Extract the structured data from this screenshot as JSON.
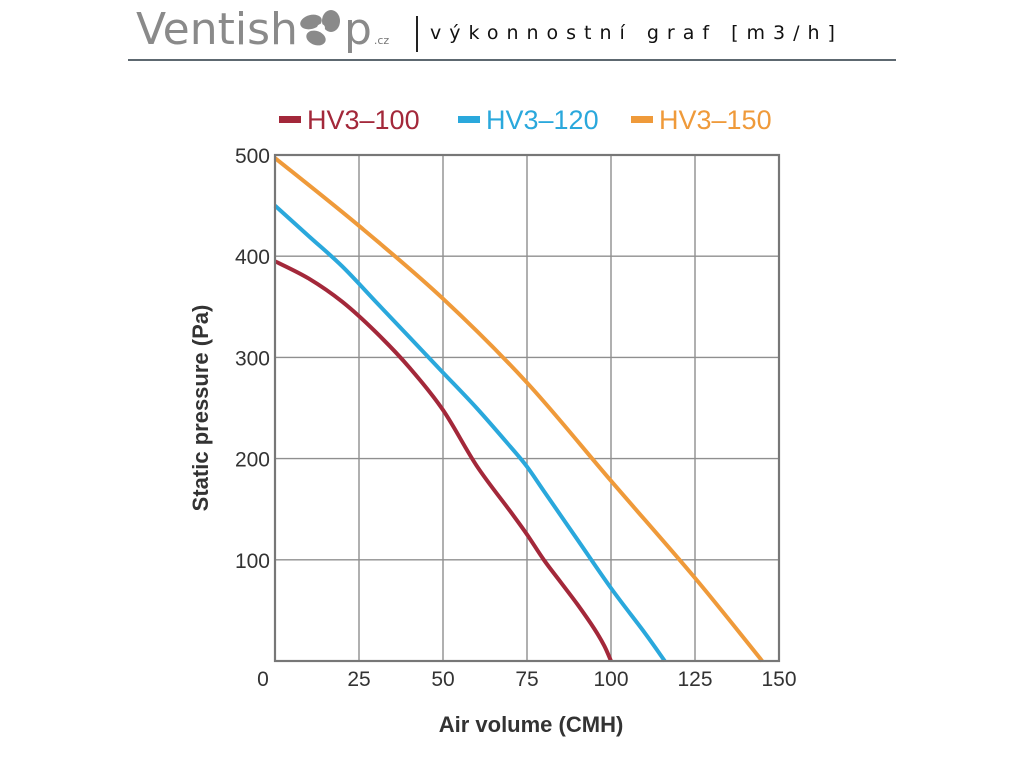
{
  "header": {
    "logo_text_left": "Ventish",
    "logo_text_right": "p",
    "logo_tld": ".cz",
    "subtitle": "výkonnostní graf [m3/h]"
  },
  "chart_data": {
    "type": "line",
    "title": "",
    "xlabel": "Air volume (CMH)",
    "ylabel": "Static pressure (Pa)",
    "xlim": [
      0,
      150
    ],
    "ylim": [
      0,
      500
    ],
    "xticks": [
      0,
      25,
      50,
      75,
      100,
      125,
      150
    ],
    "yticks": [
      100,
      200,
      300,
      400,
      500
    ],
    "xtick_labels": [
      "0",
      "25",
      "50",
      "75",
      "100",
      "125",
      "150"
    ],
    "ytick_labels": [
      "100",
      "200",
      "300",
      "400",
      "500"
    ],
    "grid": true,
    "legend_position": "top",
    "series": [
      {
        "name": "HV3-100",
        "color": "#a3283a",
        "x": [
          0,
          10,
          20,
          30,
          40,
          50,
          60,
          70,
          75,
          80,
          85,
          90,
          95,
          98,
          100
        ],
        "y": [
          395,
          378,
          355,
          325,
          290,
          248,
          193,
          148,
          125,
          100,
          78,
          56,
          32,
          15,
          0
        ]
      },
      {
        "name": "HV3-120",
        "color": "#2aa8dc",
        "x": [
          0,
          10,
          20,
          30,
          40,
          50,
          60,
          70,
          75,
          80,
          90,
          100,
          110,
          116
        ],
        "y": [
          450,
          420,
          390,
          355,
          320,
          285,
          250,
          212,
          192,
          168,
          120,
          72,
          28,
          0
        ]
      },
      {
        "name": "HV3-150",
        "color": "#ef9a3a",
        "x": [
          0,
          25,
          50,
          75,
          100,
          125,
          145
        ],
        "y": [
          497,
          430,
          358,
          275,
          178,
          82,
          0
        ]
      }
    ]
  }
}
